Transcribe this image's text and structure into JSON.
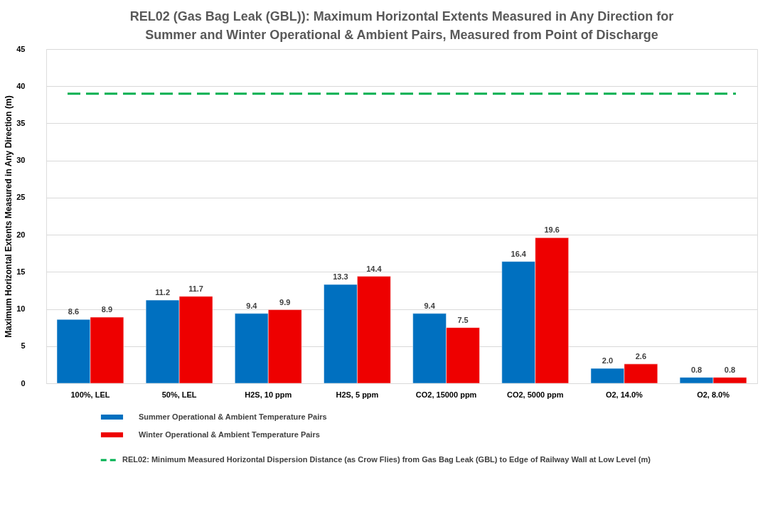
{
  "chart_data": {
    "type": "bar",
    "title": "REL02 (Gas Bag Leak (GBL)): Maximum Horizontal Extents Measured in Any Direction for Summer and Winter Operational & Ambient Pairs, Measured from Point of Discharge",
    "ylabel": "Maximum Horizontal Extents Measured in Any Direction (m)",
    "categories": [
      "100%, LEL",
      "50%, LEL",
      "H2S, 10 ppm",
      "H2S, 5 ppm",
      "CO2, 15000 ppm",
      "CO2, 5000 ppm",
      "O2, 14.0%",
      "O2, 8.0%"
    ],
    "series": [
      {
        "name": "Summer Operational & Ambient Temperature Pairs",
        "color": "#0070c0",
        "values": [
          8.6,
          11.2,
          9.4,
          13.3,
          9.4,
          16.4,
          2.0,
          0.8
        ],
        "value_labels": [
          "8.6",
          "11.2",
          "9.4",
          "13.3",
          "9.4",
          "16.4",
          "2.0",
          "0.8"
        ]
      },
      {
        "name": "Winter Operational & Ambient Temperature Pairs",
        "color": "#ee0000",
        "values": [
          8.9,
          11.7,
          9.9,
          14.4,
          7.5,
          19.6,
          2.6,
          0.8
        ],
        "value_labels": [
          "8.9",
          "11.7",
          "9.9",
          "14.4",
          "7.5",
          "19.6",
          "2.6",
          "0.8"
        ]
      }
    ],
    "ref_lines": [
      {
        "axis": "y",
        "value": 39,
        "label": "REL02: Minimum Measured Horizontal Dispersion  Distance (as Crow Flies) from Gas Bag Leak (GBL) to Edge of Railway Wall at Low Level (m)",
        "color": "#00b050",
        "line_style": "dashed"
      }
    ],
    "ylim": [
      0,
      45
    ],
    "yticks": [
      0,
      5,
      10,
      15,
      20,
      25,
      30,
      35,
      40,
      45
    ],
    "grid": "y",
    "legend": "bottom"
  }
}
